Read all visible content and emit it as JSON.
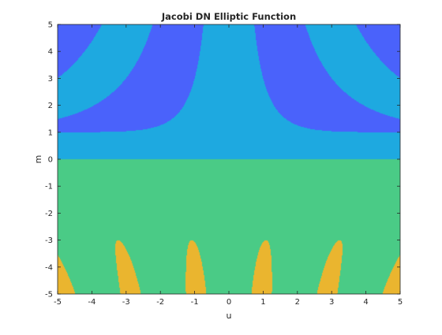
{
  "chart_data": {
    "type": "contourf",
    "title": "Jacobi DN Elliptic Function",
    "xlabel": "u",
    "ylabel": "m",
    "xlim": [
      -5,
      5
    ],
    "ylim": [
      -5,
      5
    ],
    "xticks": [
      "-5",
      "-4",
      "-3",
      "-2",
      "-1",
      "0",
      "1",
      "2",
      "3",
      "4",
      "5"
    ],
    "yticks": [
      "5",
      "4",
      "3",
      "2",
      "1",
      "0",
      "-1",
      "-2",
      "-3",
      "-4",
      "-5"
    ],
    "grid": false,
    "box": true,
    "levels": [
      -1.0,
      0.0,
      1.0,
      2.0,
      3.0
    ],
    "colors": [
      "#3e26a8",
      "#4a62fb",
      "#1ea9e0",
      "#4acb86",
      "#eab52f",
      "#f8f814"
    ]
  }
}
